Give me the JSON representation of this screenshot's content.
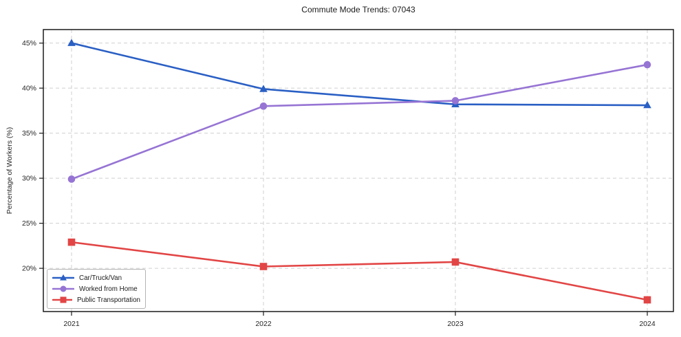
{
  "figure": {
    "title": "Commute Mode Trends: 07043"
  },
  "chart_data": {
    "type": "line",
    "title": "Commute Mode Trends: 07043",
    "xlabel": "",
    "ylabel": "Percentage of Workers (%)",
    "categories": [
      "2021",
      "2022",
      "2023",
      "2024"
    ],
    "series": [
      {
        "name": "Car/Truck/Van",
        "color": "#2a5fc4",
        "marker": "triangle",
        "values": [
          45.0,
          39.9,
          38.2,
          38.1
        ]
      },
      {
        "name": "Worked from Home",
        "color": "#9674d4",
        "marker": "circle",
        "values": [
          29.9,
          38.0,
          38.6,
          42.6
        ]
      },
      {
        "name": "Public Transportation",
        "color": "#e24545",
        "marker": "square",
        "values": [
          22.9,
          20.2,
          20.7,
          16.5
        ]
      }
    ],
    "yticks": {
      "values": [
        20,
        25,
        30,
        35,
        40,
        45
      ],
      "labels": [
        "20%",
        "25%",
        "30%",
        "35%",
        "40%",
        "45%"
      ]
    },
    "ylim": [
      15.2,
      46.5
    ],
    "grid": "dashed",
    "grid_color": "#cfcfcf",
    "axis_color": "#1a1a1a",
    "legend_position": "lower-left"
  }
}
